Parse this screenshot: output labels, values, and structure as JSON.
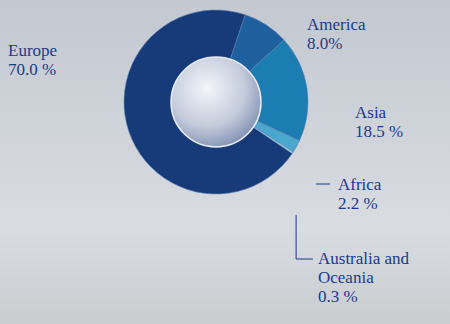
{
  "chart_data": {
    "type": "pie",
    "categories": [
      "Europe",
      "America",
      "Asia",
      "Africa",
      "Australia and Oceania"
    ],
    "values": [
      70.0,
      8.0,
      18.5,
      2.2,
      0.3
    ],
    "value_labels": [
      "70.0 %",
      "8.0%",
      "18.5 %",
      "2.2 %",
      "0.3 %"
    ],
    "colors": [
      "#173a78",
      "#1e5f9e",
      "#1b7db2",
      "#4aa8cf",
      "#9fd2e4"
    ],
    "data_labels": true
  }
}
